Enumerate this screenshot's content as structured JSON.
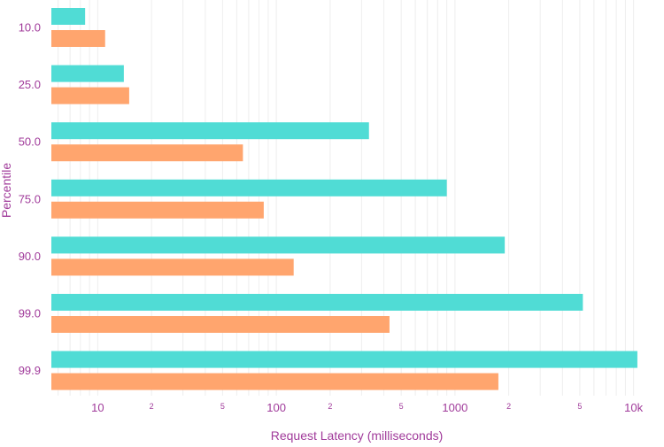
{
  "chart_data": {
    "type": "bar",
    "orientation": "horizontal",
    "xlabel": "Request Latency (milliseconds)",
    "ylabel": "Percentile",
    "xscale": "log",
    "xlim": [
      5.5,
      11000
    ],
    "grid": true,
    "categories": [
      "10.0",
      "25.0",
      "50.0",
      "75.0",
      "90.0",
      "99.0",
      "99.9"
    ],
    "series": [
      {
        "color": "#50dcd5",
        "values": [
          8.5,
          14,
          330,
          900,
          1900,
          5200,
          10500
        ]
      },
      {
        "color": "#ffa56e",
        "values": [
          11,
          15,
          65,
          85,
          125,
          430,
          1750
        ]
      }
    ],
    "x_major_ticks": [
      {
        "value": 10,
        "label": "10"
      },
      {
        "value": 100,
        "label": "100"
      },
      {
        "value": 1000,
        "label": "1000"
      },
      {
        "value": 10000,
        "label": "10k"
      }
    ],
    "x_minor_ticks": [
      {
        "value": 20,
        "label": "2"
      },
      {
        "value": 50,
        "label": "5"
      },
      {
        "value": 200,
        "label": "2"
      },
      {
        "value": 500,
        "label": "5"
      },
      {
        "value": 2000,
        "label": "2"
      },
      {
        "value": 5000,
        "label": "5"
      }
    ]
  }
}
